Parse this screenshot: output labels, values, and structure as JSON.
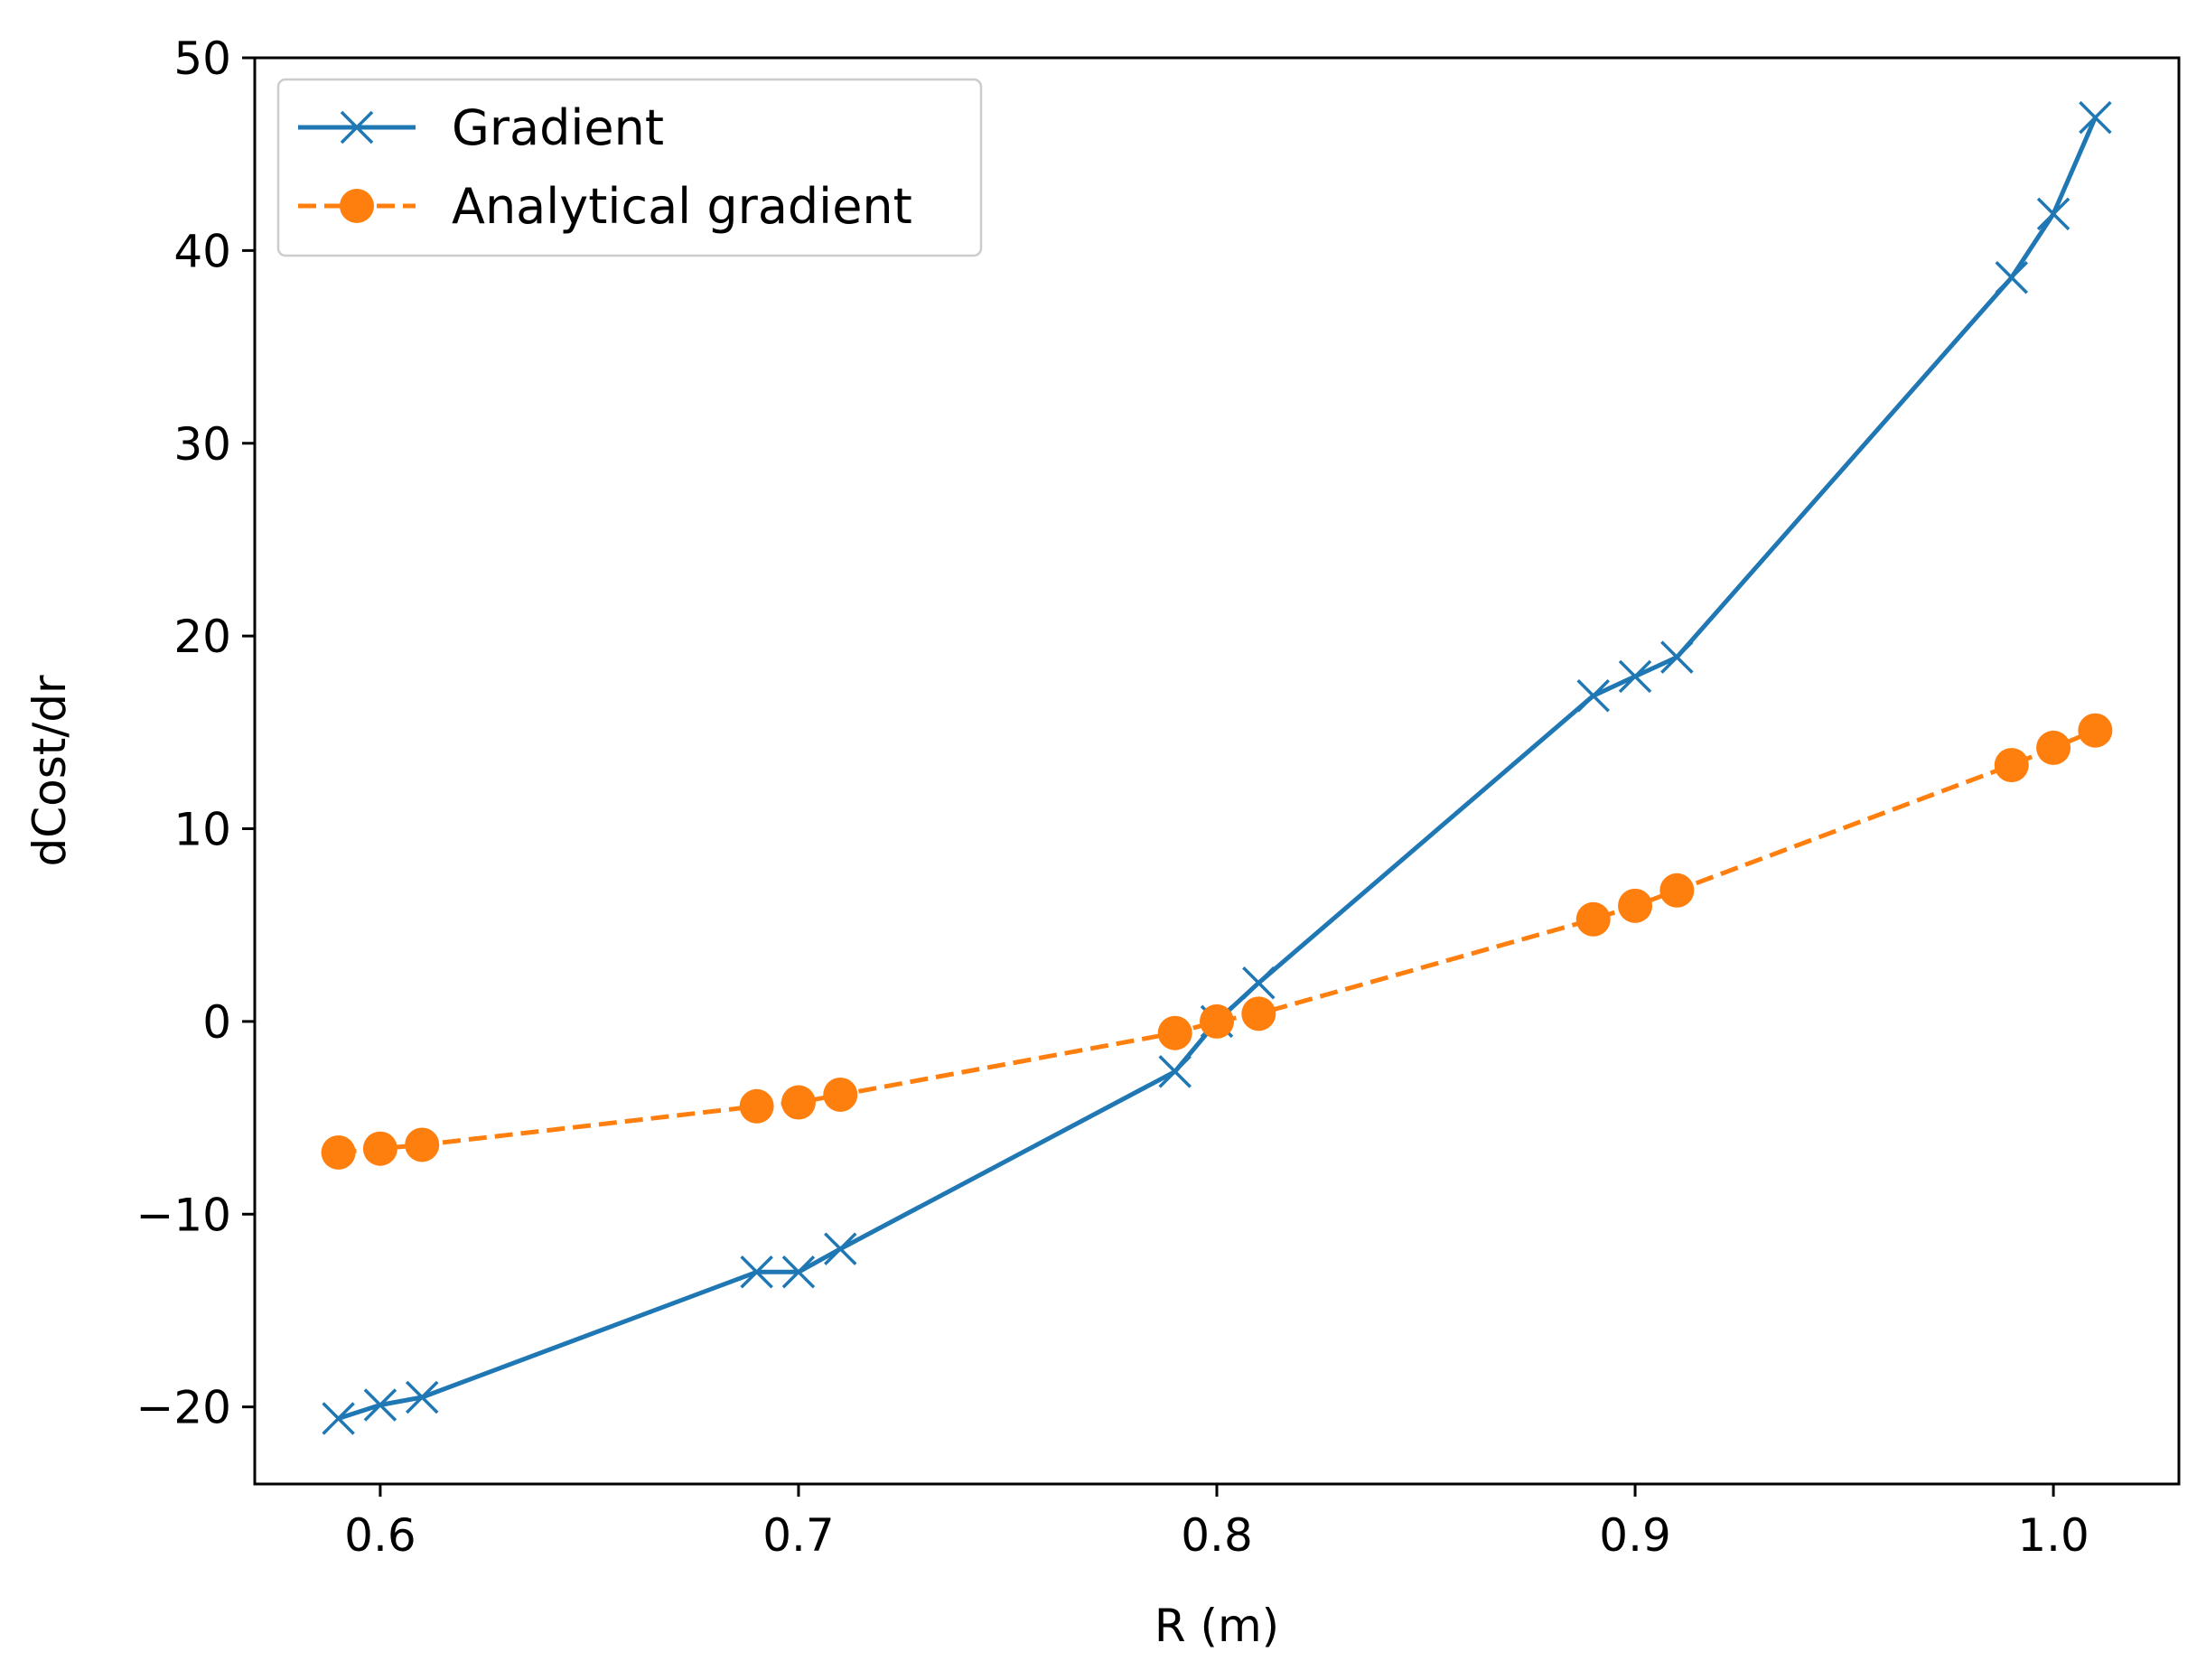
{
  "chart_data": {
    "type": "line",
    "title": "",
    "xlabel": "R (m)",
    "ylabel": "dCost/dr",
    "xlim": [
      0.57,
      1.03
    ],
    "ylim": [
      -24,
      50
    ],
    "xticks": [
      0.6,
      0.7,
      0.8,
      0.9,
      1.0
    ],
    "xtick_labels": [
      "0.6",
      "0.7",
      "0.8",
      "0.9",
      "1.0"
    ],
    "yticks": [
      -20,
      -10,
      0,
      10,
      20,
      30,
      40,
      50
    ],
    "ytick_labels": [
      "−20",
      "−10",
      "0",
      "10",
      "20",
      "30",
      "40",
      "50"
    ],
    "grid": false,
    "legend_position": "top-left",
    "series": [
      {
        "name": "Gradient",
        "color": "#1f77b4",
        "line_style": "solid",
        "marker": "x",
        "x": [
          0.59,
          0.6,
          0.61,
          0.69,
          0.7,
          0.71,
          0.79,
          0.8,
          0.81,
          0.89,
          0.9,
          0.91,
          0.99,
          1.0,
          1.01
        ],
        "y": [
          -20.6,
          -19.9,
          -19.5,
          -13.0,
          -13.0,
          -11.8,
          -2.6,
          0.0,
          2.0,
          16.9,
          17.9,
          18.9,
          38.6,
          41.9,
          46.9
        ]
      },
      {
        "name": "Analytical gradient",
        "color": "#ff7f0e",
        "line_style": "dashed",
        "marker": "circle",
        "x": [
          0.59,
          0.6,
          0.61,
          0.69,
          0.7,
          0.71,
          0.79,
          0.8,
          0.81,
          0.89,
          0.9,
          0.91,
          0.99,
          1.0,
          1.01
        ],
        "y": [
          -6.8,
          -6.6,
          -6.4,
          -4.4,
          -4.2,
          -3.8,
          -0.6,
          0.0,
          0.4,
          5.3,
          6.0,
          6.8,
          13.3,
          14.2,
          15.1
        ]
      }
    ]
  }
}
